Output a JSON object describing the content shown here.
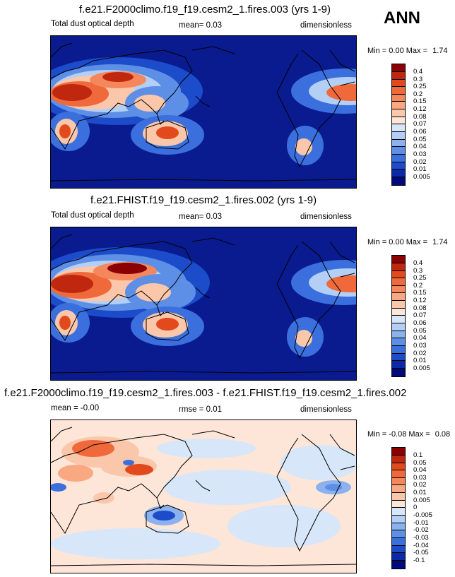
{
  "season": "ANN",
  "panels": [
    {
      "title": "f.e21.F2000climo.f19_f19.cesm2_1.fires.003 (yrs 1-9)",
      "left_label": "Total dust optical depth",
      "center_label": "mean=   0.03",
      "right_label": "dimensionless",
      "min_label": "Min =",
      "min_value": "0.00",
      "max_label": "Max =",
      "max_value": "1.74",
      "colorbar_levels": [
        "0.4",
        "0.3",
        "0.25",
        "0.2",
        "0.15",
        "0.12",
        "0.08",
        "0.07",
        "0.06",
        "0.05",
        "0.04",
        "0.03",
        "0.02",
        "0.01",
        "0.005"
      ],
      "colorbar_colors": [
        "#8b0000",
        "#c0270f",
        "#e24a1d",
        "#f0693a",
        "#f5875c",
        "#f9a882",
        "#fbc7ab",
        "#fde6d8",
        "#d7e6f8",
        "#b3cff5",
        "#8bb1ee",
        "#5d8fe6",
        "#3a6fdd",
        "#1c4cc9",
        "#0c2aa8",
        "#000a7a"
      ],
      "background": "#0a1b8f"
    },
    {
      "title": "f.e21.FHIST.f19_f19.cesm2_1.fires.002 (yrs 1-9)",
      "left_label": "Total dust optical depth",
      "center_label": "mean=   0.03",
      "right_label": "dimensionless",
      "min_label": "Min =",
      "min_value": "0.00",
      "max_label": "Max =",
      "max_value": "1.74",
      "colorbar_levels": [
        "0.4",
        "0.3",
        "0.25",
        "0.2",
        "0.15",
        "0.12",
        "0.08",
        "0.07",
        "0.06",
        "0.05",
        "0.04",
        "0.03",
        "0.02",
        "0.01",
        "0.005"
      ],
      "colorbar_colors": [
        "#8b0000",
        "#c0270f",
        "#e24a1d",
        "#f0693a",
        "#f5875c",
        "#f9a882",
        "#fbc7ab",
        "#fde6d8",
        "#d7e6f8",
        "#b3cff5",
        "#8bb1ee",
        "#5d8fe6",
        "#3a6fdd",
        "#1c4cc9",
        "#0c2aa8",
        "#000a7a"
      ],
      "background": "#0a1b8f"
    },
    {
      "title": "f.e21.F2000climo.f19_f19.cesm2_1.fires.003 - f.e21.FHIST.f19_f19.cesm2_1.fires.002",
      "left_label": "mean =  -0.00",
      "center_label": "rmse =   0.01",
      "right_label": "dimensionless",
      "min_label": "Min =",
      "min_value": "-0.08",
      "max_label": "Max =",
      "max_value": "0.08",
      "colorbar_levels": [
        "0.1",
        "0.05",
        "0.04",
        "0.03",
        "0.02",
        "0.01",
        "0.005",
        "0",
        "-0.005",
        "-0.01",
        "-0.02",
        "-0.03",
        "-0.04",
        "-0.05",
        "-0.1"
      ],
      "colorbar_colors": [
        "#8b0000",
        "#c0270f",
        "#e24a1d",
        "#f0693a",
        "#f5875c",
        "#f9a882",
        "#fbc7ab",
        "#fde6d8",
        "#d7e6f8",
        "#b3cff5",
        "#8bb1ee",
        "#5d8fe6",
        "#3a6fdd",
        "#1c4cc9",
        "#0c2aa8",
        "#000a7a"
      ],
      "background": "#fde6d8"
    }
  ]
}
